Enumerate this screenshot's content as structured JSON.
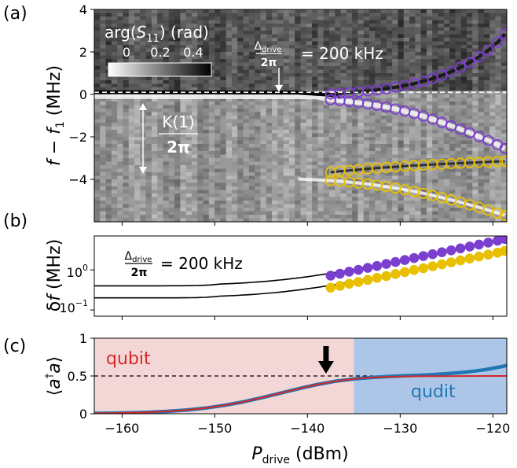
{
  "chart_data": [
    {
      "panel": "(a)",
      "type": "heatmap",
      "xlim": [
        -163,
        -118.5
      ],
      "ylim": [
        -6,
        4
      ],
      "yticks": [
        4,
        2,
        0,
        -2,
        -4
      ],
      "ylabel_parts": [
        "f",
        " − ",
        "f",
        "1",
        " (MHz)"
      ],
      "colorbar": {
        "label_parts": [
          "arg(",
          "S",
          "11",
          ") (rad)"
        ],
        "ticks": [
          "0",
          "0.2",
          "0.4"
        ],
        "range": [
          0,
          0.5
        ]
      },
      "annotations": {
        "drive_frac_num": "Δ",
        "drive_frac_num_sub": "drive",
        "drive_frac_den": "2π",
        "drive_value": "= 200 kHz",
        "kerr_num": "K(1)",
        "kerr_den": "2π"
      },
      "dashed_line_y": 0.1,
      "series": [
        {
          "color": "#7b3fd0",
          "x": [
            -137.5,
            -136.5,
            -135.5,
            -134.5,
            -133.5,
            -132.5,
            -131.5,
            -130.5,
            -129.5,
            -128.5,
            -127.5,
            -126.5,
            -125.5,
            -124.5,
            -123.5,
            -122.5,
            -121.5,
            -120.5,
            -119.5,
            -118.7
          ],
          "y": [
            0.02,
            0.05,
            0.08,
            0.12,
            0.16,
            0.21,
            0.27,
            0.34,
            0.42,
            0.51,
            0.62,
            0.75,
            0.9,
            1.07,
            1.27,
            1.5,
            1.77,
            2.08,
            2.45,
            2.85
          ]
        },
        {
          "color": "#7b3fd0",
          "x": [
            -137.5,
            -136.5,
            -135.5,
            -134.5,
            -133.5,
            -132.5,
            -131.5,
            -130.5,
            -129.5,
            -128.5,
            -127.5,
            -126.5,
            -125.5,
            -124.5,
            -123.5,
            -122.5,
            -121.5,
            -120.5,
            -119.5,
            -118.7
          ],
          "y": [
            -0.25,
            -0.29,
            -0.34,
            -0.39,
            -0.45,
            -0.52,
            -0.6,
            -0.69,
            -0.79,
            -0.9,
            -1.03,
            -1.17,
            -1.32,
            -1.48,
            -1.64,
            -1.81,
            -1.99,
            -2.17,
            -2.37,
            -2.55
          ]
        },
        {
          "color": "#e8c000",
          "x": [
            -137.5,
            -136.5,
            -135.5,
            -134.5,
            -133.5,
            -132.5,
            -131.5,
            -130.5,
            -129.5,
            -128.5,
            -127.5,
            -126.5,
            -125.5,
            -124.5,
            -123.5,
            -122.5,
            -121.5,
            -120.5,
            -119.5,
            -118.7
          ],
          "y": [
            -3.67,
            -3.62,
            -3.58,
            -3.54,
            -3.5,
            -3.47,
            -3.44,
            -3.41,
            -3.38,
            -3.35,
            -3.33,
            -3.3,
            -3.28,
            -3.26,
            -3.24,
            -3.22,
            -3.2,
            -3.18,
            -3.16,
            -3.15
          ]
        },
        {
          "color": "#e8c000",
          "x": [
            -137.5,
            -136.5,
            -135.5,
            -134.5,
            -133.5,
            -132.5,
            -131.5,
            -130.5,
            -129.5,
            -128.5,
            -127.5,
            -126.5,
            -125.5,
            -124.5,
            -123.5,
            -122.5,
            -121.5,
            -120.5,
            -119.5,
            -118.7
          ],
          "y": [
            -4.06,
            -4.09,
            -4.13,
            -4.17,
            -4.22,
            -4.28,
            -4.34,
            -4.41,
            -4.49,
            -4.57,
            -4.66,
            -4.76,
            -4.86,
            -4.97,
            -5.08,
            -5.2,
            -5.32,
            -5.45,
            -5.58,
            -5.7
          ]
        }
      ]
    },
    {
      "panel": "(b)",
      "type": "scatter",
      "yscale": "log",
      "xlim": [
        -163,
        -118.5
      ],
      "ylim": [
        0.07,
        7
      ],
      "ylabel_parts": [
        "δ",
        "f",
        " (MHz)"
      ],
      "annotation": {
        "frac_num": "Δ",
        "frac_num_sub": "drive",
        "frac_den": "2π",
        "value": "= 200 kHz"
      },
      "series": [
        {
          "color": "#7b3fd0",
          "x": [
            -137.5,
            -136.5,
            -135.5,
            -134.5,
            -133.5,
            -132.5,
            -131.5,
            -130.5,
            -129.5,
            -128.5,
            -127.5,
            -126.5,
            -125.5,
            -124.5,
            -123.5,
            -122.5,
            -121.5,
            -120.5,
            -119.5,
            -118.7
          ],
          "y": [
            0.72,
            0.8,
            0.9,
            1.0,
            1.12,
            1.25,
            1.4,
            1.57,
            1.76,
            1.97,
            2.2,
            2.46,
            2.75,
            3.07,
            3.43,
            3.83,
            4.28,
            4.78,
            5.34,
            5.9
          ]
        },
        {
          "color": "#e8c000",
          "x": [
            -137.5,
            -136.5,
            -135.5,
            -134.5,
            -133.5,
            -132.5,
            -131.5,
            -130.5,
            -129.5,
            -128.5,
            -127.5,
            -126.5,
            -125.5,
            -124.5,
            -123.5,
            -122.5,
            -121.5,
            -120.5,
            -119.5,
            -118.7
          ],
          "y": [
            0.36,
            0.4,
            0.45,
            0.5,
            0.56,
            0.63,
            0.7,
            0.79,
            0.88,
            0.99,
            1.1,
            1.23,
            1.38,
            1.54,
            1.72,
            1.92,
            2.14,
            2.39,
            2.67,
            2.95
          ]
        }
      ]
    },
    {
      "panel": "(c)",
      "type": "line",
      "xlim": [
        -163,
        -118.5
      ],
      "ylim": [
        0,
        1
      ],
      "xticks": [
        -160,
        -150,
        -140,
        -130,
        -120
      ],
      "yticks": [
        "0",
        "0.5",
        "1"
      ],
      "xlabel_parts": [
        "P",
        "drive",
        " (dBm)"
      ],
      "ylabel_parts": [
        "⟨",
        "a",
        "†",
        "a",
        "⟩"
      ],
      "region_split_x": -135,
      "regions": [
        {
          "label": "qubit",
          "color": "#d62728"
        },
        {
          "label": "qudit",
          "color": "#1f77b4"
        }
      ],
      "arrow_x": -138,
      "hline_y": 0.5,
      "x": [
        -163,
        -161,
        -159,
        -157,
        -155,
        -153,
        -151,
        -149,
        -147,
        -145,
        -143,
        -141,
        -139,
        -137,
        -135,
        -133,
        -131,
        -129,
        -127,
        -125,
        -123,
        -121,
        -119,
        -118.5
      ],
      "series": [
        {
          "name": "qudit",
          "color": "#1f77b4",
          "y": [
            0.005,
            0.008,
            0.012,
            0.02,
            0.032,
            0.05,
            0.075,
            0.11,
            0.155,
            0.21,
            0.27,
            0.33,
            0.385,
            0.43,
            0.46,
            0.48,
            0.495,
            0.505,
            0.515,
            0.53,
            0.55,
            0.58,
            0.625,
            0.64
          ]
        },
        {
          "name": "qubit",
          "color": "#d62728",
          "y": [
            0.005,
            0.008,
            0.012,
            0.02,
            0.032,
            0.05,
            0.075,
            0.11,
            0.155,
            0.21,
            0.27,
            0.33,
            0.385,
            0.43,
            0.46,
            0.48,
            0.49,
            0.495,
            0.497,
            0.498,
            0.499,
            0.5,
            0.5,
            0.5
          ]
        }
      ]
    }
  ]
}
